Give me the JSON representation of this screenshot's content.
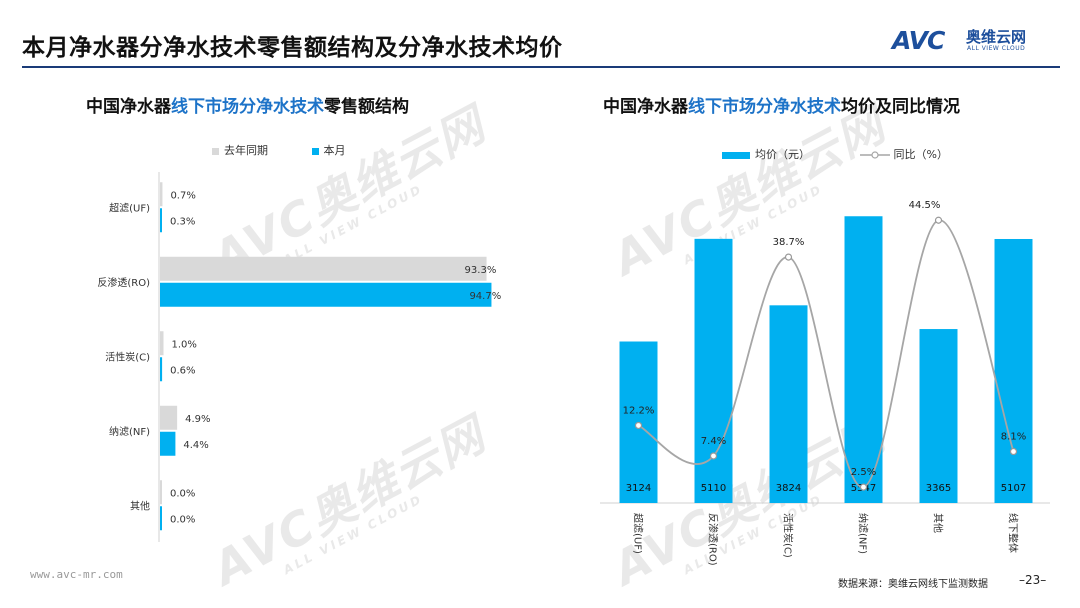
{
  "page": {
    "title": "本月净水器分净水技术零售额结构及分净水技术均价",
    "logo_brand": "AVC",
    "logo_cn": "奥维云网",
    "logo_en": "ALL VIEW CLOUD",
    "footer_url": "www.avc-mr.com",
    "footer_source": "数据来源：奥维云网线下监测数据",
    "page_number": "–23–",
    "watermark_brand": "AVC",
    "watermark_cn": "奥维云网",
    "watermark_en": "ALL VIEW CLOUD"
  },
  "left_chart": {
    "title_pre": "中国净水器",
    "title_hl": "线下市场分净水技术",
    "title_post": "零售额结构"
  },
  "right_chart": {
    "title_pre": "中国净水器",
    "title_hl": "线下市场分净水技术",
    "title_post": "均价及同比情况"
  },
  "chart_data": [
    {
      "type": "bar",
      "orientation": "horizontal",
      "categories": [
        "超滤(UF)",
        "反渗透(RO)",
        "活性炭(C)",
        "纳滤(NF)",
        "其他"
      ],
      "series": [
        {
          "name": "去年同期",
          "values": [
            0.7,
            93.3,
            1.0,
            4.9,
            0.0
          ],
          "color": "#d9d9d9"
        },
        {
          "name": "本月",
          "values": [
            0.3,
            94.7,
            0.6,
            4.4,
            0.0
          ],
          "color": "#00b0f0"
        }
      ],
      "value_labels": [
        [
          "0.7%",
          "93.3%",
          "1.0%",
          "4.9%",
          "0.0%"
        ],
        [
          "0.3%",
          "94.7%",
          "0.6%",
          "4.4%",
          "0.0%"
        ]
      ],
      "xlim": [
        0,
        100
      ],
      "legend": "top"
    },
    {
      "type": "bar+line",
      "categories": [
        "超滤(UF)",
        "反渗透(RO)",
        "活性炭(C)",
        "纳滤(NF)",
        "其他",
        "线下整体"
      ],
      "bar_series": {
        "name": "均价（元）",
        "values": [
          3124,
          5110,
          3824,
          5547,
          3365,
          5107
        ],
        "color": "#00b0f0"
      },
      "line_series": {
        "name": "同比（%）",
        "values": [
          12.2,
          7.4,
          38.7,
          2.5,
          44.5,
          8.1
        ],
        "labels": [
          "12.2%",
          "7.4%",
          "38.7%",
          "2.5%",
          "44.5%",
          "8.1%"
        ],
        "color": "#a6a6a6"
      },
      "bar_ylim": [
        0,
        5900
      ],
      "line_ylim": [
        0,
        48
      ],
      "legend": "top"
    }
  ]
}
